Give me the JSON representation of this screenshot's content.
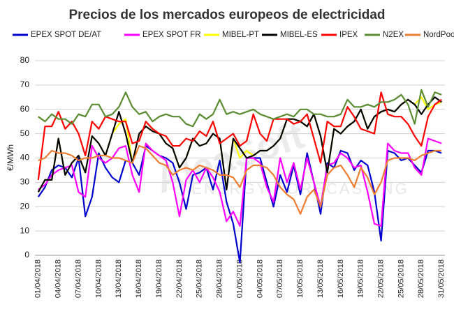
{
  "chart_data": {
    "type": "line",
    "title": "Precios de los mercados europeos de electricidad",
    "y_label": "€/MWh",
    "watermark": "AleaSoft",
    "watermark_subtitle": "ENERGY FORECASTING",
    "categories": [
      "01/04/2018",
      null,
      null,
      "04/04/2018",
      null,
      null,
      "07/04/2018",
      null,
      null,
      "10/04/2018",
      null,
      null,
      "13/04/2018",
      null,
      null,
      "16/04/2018",
      null,
      null,
      "19/04/2018",
      null,
      null,
      "22/04/2018",
      null,
      null,
      "25/04/2018",
      null,
      null,
      "28/04/2018",
      null,
      null,
      "01/05/2018",
      null,
      null,
      "04/05/2018",
      null,
      null,
      "07/05/2018",
      null,
      null,
      "10/05/2018",
      null,
      null,
      "13/05/2018",
      null,
      null,
      "16/05/2018",
      null,
      null,
      "19/05/2018",
      null,
      null,
      "22/05/2018",
      null,
      null,
      "25/05/2018",
      null,
      null,
      "28/05/2018",
      null,
      null,
      "31/05/2018"
    ],
    "ylim": [
      0,
      80
    ],
    "yticks": [
      0,
      10,
      20,
      30,
      40,
      50,
      60,
      70,
      80
    ],
    "grid": true,
    "legend": "top",
    "series": [
      {
        "name": "EPEX SPOT DE/AT",
        "color": "#0000cc",
        "values": [
          24,
          28,
          35,
          37,
          36,
          32,
          40,
          16,
          24,
          42,
          36,
          32,
          30,
          39,
          38,
          33,
          45,
          43,
          41,
          40,
          38,
          30,
          19,
          33,
          34,
          36,
          27,
          39,
          22,
          13,
          -3,
          40,
          40,
          40,
          30,
          20,
          33,
          26,
          37,
          25,
          42,
          30,
          17,
          38,
          36,
          43,
          42,
          35,
          39,
          37,
          26,
          6,
          43,
          42,
          39,
          40,
          37,
          34,
          43,
          43,
          42
        ]
      },
      {
        "name": "EPEX SPOT FR",
        "color": "#ff00ff",
        "values": [
          27,
          29,
          33,
          35,
          36,
          37,
          26,
          24,
          45,
          40,
          38,
          40,
          44,
          45,
          33,
          26,
          46,
          43,
          41,
          39,
          30,
          16,
          31,
          35,
          30,
          36,
          32,
          26,
          14,
          18,
          12,
          40,
          40,
          38,
          28,
          22,
          40,
          30,
          38,
          27,
          40,
          30,
          20,
          37,
          38,
          42,
          40,
          36,
          37,
          26,
          13,
          12,
          46,
          43,
          42,
          42,
          36,
          33,
          48,
          47,
          46
        ]
      },
      {
        "name": "MIBEL-PT",
        "color": "#ffff00",
        "values": [
          26,
          31,
          31,
          48,
          33,
          38,
          41,
          34,
          49,
          46,
          41,
          50,
          54,
          56,
          38,
          50,
          53,
          51,
          50,
          46,
          44,
          36,
          40,
          48,
          45,
          46,
          50,
          48,
          27,
          48,
          40,
          43,
          41,
          43,
          43,
          45,
          48,
          56,
          56,
          55,
          53,
          58,
          49,
          34,
          52,
          50,
          53,
          55,
          60,
          52,
          57,
          59,
          60,
          59,
          62,
          64,
          62,
          65,
          60,
          62,
          63
        ]
      },
      {
        "name": "MIBEL-ES",
        "color": "#000000",
        "values": [
          26,
          31,
          31,
          48,
          33,
          38,
          41,
          34,
          49,
          46,
          41,
          50,
          59,
          50,
          38,
          50,
          53,
          51,
          50,
          46,
          44,
          36,
          40,
          48,
          45,
          46,
          50,
          48,
          27,
          48,
          44,
          40,
          41,
          43,
          43,
          45,
          48,
          56,
          56,
          55,
          53,
          58,
          49,
          34,
          52,
          50,
          53,
          55,
          60,
          52,
          57,
          59,
          60,
          59,
          62,
          64,
          62,
          58,
          62,
          65,
          63
        ]
      },
      {
        "name": "IPEX",
        "color": "#ff0000",
        "values": [
          31,
          53,
          53,
          59,
          52,
          55,
          50,
          41,
          55,
          52,
          57,
          56,
          55,
          55,
          46,
          47,
          55,
          52,
          50,
          49,
          45,
          45,
          48,
          47,
          51,
          49,
          55,
          46,
          48,
          50,
          45,
          47,
          58,
          50,
          47,
          56,
          56,
          56,
          54,
          55,
          58,
          48,
          38,
          55,
          53,
          53,
          61,
          57,
          52,
          51,
          50,
          67,
          58,
          57,
          57,
          54,
          49,
          45,
          57,
          62,
          64
        ]
      },
      {
        "name": "N2EX",
        "color": "#5b8c32",
        "values": [
          57,
          55,
          58,
          56,
          56,
          54,
          58,
          57,
          62,
          62,
          57,
          58,
          61,
          67,
          61,
          58,
          59,
          55,
          57,
          58,
          57,
          57,
          54,
          53,
          58,
          56,
          58,
          64,
          58,
          59,
          58,
          59,
          60,
          58,
          57,
          56,
          57,
          58,
          57,
          60,
          60,
          58,
          58,
          57,
          57,
          58,
          64,
          61,
          61,
          62,
          61,
          63,
          63,
          64,
          66,
          62,
          54,
          68,
          61,
          67,
          66
        ]
      },
      {
        "name": "NordPool",
        "color": "#ed7d31",
        "values": [
          39,
          40,
          43,
          42,
          42,
          41,
          39,
          40,
          40,
          41,
          41,
          40,
          40,
          39,
          38,
          45,
          44,
          41,
          38,
          37,
          33,
          35,
          36,
          35,
          37,
          36,
          35,
          33,
          33,
          32,
          28,
          35,
          37,
          37,
          36,
          33,
          28,
          25,
          23,
          17,
          24,
          27,
          20,
          33,
          36,
          37,
          33,
          28,
          36,
          32,
          25,
          30,
          39,
          40,
          40,
          40,
          39,
          41,
          42,
          43,
          43
        ]
      }
    ]
  }
}
